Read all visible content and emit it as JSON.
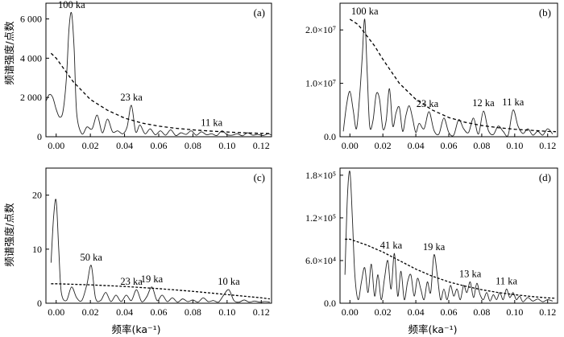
{
  "figure": {
    "ylabel": "频谱强度/点数",
    "xlabel": "频率(ka⁻¹)"
  },
  "chart_data": [
    {
      "type": "line",
      "panel": "(a)",
      "title": "",
      "xlim": [
        -0.006,
        0.126
      ],
      "ylim": [
        0,
        6800
      ],
      "xticks": [
        0.0,
        0.02,
        0.04,
        0.06,
        0.08,
        0.1,
        0.12
      ],
      "xtick_labels": [
        "0.00",
        "0.02",
        "0.04",
        "0.06",
        "0.08",
        "0.10",
        "0.12"
      ],
      "yticks": [
        0,
        2000,
        4000,
        6000
      ],
      "ytick_labels": [
        "0",
        "2 000",
        "4 000",
        "6 000"
      ],
      "show_ylabel": true,
      "show_xlabel": false,
      "series": [
        {
          "style": "solid",
          "x": [
            -0.006,
            -0.004,
            -0.002,
            0.0,
            0.002,
            0.004,
            0.006,
            0.0075,
            0.009,
            0.0105,
            0.012,
            0.015,
            0.018,
            0.021,
            0.024,
            0.027,
            0.03,
            0.033,
            0.036,
            0.039,
            0.0415,
            0.044,
            0.0465,
            0.049,
            0.052,
            0.055,
            0.058,
            0.061,
            0.064,
            0.067,
            0.07,
            0.073,
            0.076,
            0.079,
            0.082,
            0.085,
            0.088,
            0.091,
            0.094,
            0.097,
            0.1,
            0.103,
            0.106,
            0.109,
            0.112,
            0.115,
            0.118,
            0.121,
            0.124,
            0.126
          ],
          "y": [
            1800,
            2150,
            2000,
            1400,
            1000,
            1300,
            3000,
            5500,
            6300,
            4500,
            1200,
            150,
            500,
            400,
            1100,
            200,
            900,
            250,
            300,
            150,
            500,
            1600,
            250,
            600,
            150,
            400,
            100,
            300,
            80,
            350,
            60,
            200,
            120,
            300,
            80,
            250,
            100,
            150,
            60,
            300,
            100,
            80,
            150,
            50,
            200,
            80,
            120,
            60,
            150,
            80
          ]
        },
        {
          "style": "dashed",
          "x": [
            -0.003,
            0.0,
            0.01,
            0.02,
            0.03,
            0.04,
            0.05,
            0.06,
            0.07,
            0.08,
            0.09,
            0.1,
            0.11,
            0.12,
            0.126
          ],
          "y": [
            4250,
            4000,
            2800,
            1900,
            1350,
            950,
            700,
            540,
            430,
            350,
            290,
            240,
            200,
            170,
            160
          ]
        }
      ],
      "annotations": [
        {
          "text": "100 ka",
          "x": 0.009,
          "y": 6300
        },
        {
          "text": "23 ka",
          "x": 0.044,
          "y": 1600
        },
        {
          "text": "11 ka",
          "x": 0.091,
          "y": 300
        }
      ]
    },
    {
      "type": "line",
      "panel": "(b)",
      "title": "",
      "xlim": [
        -0.006,
        0.126
      ],
      "ylim": [
        0,
        25000000
      ],
      "xticks": [
        0.0,
        0.02,
        0.04,
        0.06,
        0.08,
        0.1,
        0.12
      ],
      "xtick_labels": [
        "0.00",
        "0.02",
        "0.04",
        "0.06",
        "0.08",
        "0.10",
        "0.12"
      ],
      "yticks": [
        0,
        10000000,
        20000000
      ],
      "ytick_labels": [
        "0.0",
        "1.0×10⁷",
        "2.0×10⁷"
      ],
      "show_ylabel": false,
      "show_xlabel": false,
      "series": [
        {
          "style": "solid",
          "x": [
            -0.004,
            -0.002,
            0.0,
            0.002,
            0.004,
            0.006,
            0.0075,
            0.009,
            0.0105,
            0.012,
            0.014,
            0.016,
            0.018,
            0.02,
            0.022,
            0.024,
            0.026,
            0.028,
            0.03,
            0.032,
            0.034,
            0.036,
            0.038,
            0.04,
            0.042,
            0.045,
            0.048,
            0.051,
            0.054,
            0.057,
            0.06,
            0.063,
            0.066,
            0.069,
            0.072,
            0.075,
            0.078,
            0.081,
            0.084,
            0.087,
            0.09,
            0.093,
            0.096,
            0.099,
            0.102,
            0.105,
            0.108,
            0.111,
            0.114,
            0.117,
            0.12,
            0.123
          ],
          "y": [
            1000000,
            6000000,
            8500000,
            5000000,
            1500000,
            8000000,
            15000000,
            22000000,
            12000000,
            2000000,
            3000000,
            8000000,
            7000000,
            1500000,
            3000000,
            9000000,
            2000000,
            4500000,
            5500000,
            1000000,
            4000000,
            5800000,
            3500000,
            800000,
            2500000,
            1500000,
            4700000,
            1200000,
            500000,
            3500000,
            800000,
            300000,
            3200000,
            1500000,
            800000,
            3500000,
            500000,
            4800000,
            1200000,
            400000,
            2000000,
            1000000,
            300000,
            5000000,
            2000000,
            600000,
            1500000,
            300000,
            1000000,
            300000,
            1500000,
            500000
          ]
        },
        {
          "style": "dashed",
          "x": [
            0.0,
            0.005,
            0.01,
            0.015,
            0.02,
            0.03,
            0.04,
            0.05,
            0.06,
            0.07,
            0.08,
            0.09,
            0.1,
            0.11,
            0.12,
            0.125
          ],
          "y": [
            22000000,
            21000000,
            19000000,
            17000000,
            14500000,
            10000000,
            7000000,
            5000000,
            3600000,
            2700000,
            2100000,
            1700000,
            1400000,
            1200000,
            1000000,
            950000
          ]
        }
      ],
      "annotations": [
        {
          "text": "100 ka",
          "x": 0.009,
          "y": 22000000
        },
        {
          "text": "23 ka",
          "x": 0.047,
          "y": 4700000
        },
        {
          "text": "12 ka",
          "x": 0.081,
          "y": 4800000
        },
        {
          "text": "11 ka",
          "x": 0.099,
          "y": 5000000
        }
      ]
    },
    {
      "type": "line",
      "panel": "(c)",
      "title": "",
      "xlim": [
        -0.006,
        0.126
      ],
      "ylim": [
        0,
        25
      ],
      "xticks": [
        0.0,
        0.02,
        0.04,
        0.06,
        0.08,
        0.1,
        0.12
      ],
      "xtick_labels": [
        "0.00",
        "0.02",
        "0.04",
        "0.06",
        "0.08",
        "0.10",
        "0.12"
      ],
      "yticks": [
        0,
        10,
        20
      ],
      "ytick_labels": [
        "0",
        "10",
        "20"
      ],
      "show_ylabel": true,
      "show_xlabel": true,
      "series": [
        {
          "style": "solid",
          "x": [
            -0.003,
            -0.0015,
            0.0,
            0.0015,
            0.003,
            0.006,
            0.009,
            0.012,
            0.015,
            0.018,
            0.0205,
            0.023,
            0.026,
            0.029,
            0.032,
            0.035,
            0.038,
            0.041,
            0.044,
            0.047,
            0.05,
            0.053,
            0.056,
            0.059,
            0.062,
            0.065,
            0.068,
            0.071,
            0.074,
            0.077,
            0.08,
            0.083,
            0.086,
            0.089,
            0.092,
            0.095,
            0.098,
            0.101,
            0.104,
            0.107,
            0.11,
            0.113,
            0.116,
            0.119,
            0.122,
            0.125
          ],
          "y": [
            7.5,
            16,
            19,
            10,
            2,
            0.5,
            3,
            1,
            0.5,
            3.5,
            7,
            1,
            0.5,
            2,
            0.3,
            1.5,
            0.3,
            1.5,
            0.5,
            2.5,
            0.3,
            1.2,
            3,
            0.5,
            1.5,
            0.3,
            1,
            0.2,
            0.8,
            0.3,
            0.6,
            0.2,
            1,
            0.3,
            0.5,
            0.2,
            1.5,
            2.5,
            0.5,
            0.2,
            0.6,
            0.2,
            0.4,
            0.2,
            0.3,
            0.2
          ]
        },
        {
          "style": "dashed",
          "x": [
            -0.003,
            0.0,
            0.02,
            0.04,
            0.06,
            0.08,
            0.1,
            0.12,
            0.125
          ],
          "y": [
            3.6,
            3.6,
            3.4,
            3.1,
            2.7,
            2.2,
            1.6,
            1.0,
            0.8
          ]
        }
      ],
      "annotations": [
        {
          "text": "50 ka",
          "x": 0.0205,
          "y": 7
        },
        {
          "text": "23 ka",
          "x": 0.044,
          "y": 2.5
        },
        {
          "text": "19 ka",
          "x": 0.056,
          "y": 3
        },
        {
          "text": "10 ka",
          "x": 0.101,
          "y": 2.5
        }
      ]
    },
    {
      "type": "line",
      "panel": "(d)",
      "title": "",
      "xlim": [
        -0.006,
        0.126
      ],
      "ylim": [
        0,
        190000
      ],
      "xticks": [
        0.0,
        0.02,
        0.04,
        0.06,
        0.08,
        0.1,
        0.12
      ],
      "xtick_labels": [
        "0.00",
        "0.02",
        "0.04",
        "0.06",
        "0.08",
        "0.10",
        "0.12"
      ],
      "yticks": [
        0,
        60000,
        120000,
        180000
      ],
      "ytick_labels": [
        "0.0",
        "6.0×10⁴",
        "1.2×10⁵",
        "1.8×10⁵"
      ],
      "show_ylabel": false,
      "show_xlabel": true,
      "series": [
        {
          "style": "solid",
          "x": [
            -0.003,
            -0.0015,
            0.0,
            0.0015,
            0.003,
            0.005,
            0.007,
            0.009,
            0.011,
            0.013,
            0.015,
            0.017,
            0.019,
            0.021,
            0.023,
            0.025,
            0.027,
            0.029,
            0.031,
            0.033,
            0.035,
            0.037,
            0.039,
            0.041,
            0.043,
            0.045,
            0.047,
            0.049,
            0.051,
            0.053,
            0.055,
            0.057,
            0.059,
            0.061,
            0.063,
            0.065,
            0.067,
            0.069,
            0.071,
            0.073,
            0.075,
            0.077,
            0.079,
            0.081,
            0.083,
            0.085,
            0.087,
            0.089,
            0.091,
            0.093,
            0.095,
            0.097,
            0.099,
            0.101,
            0.103,
            0.105,
            0.108,
            0.111,
            0.114,
            0.117,
            0.12,
            0.123
          ],
          "y": [
            40000,
            150000,
            185000,
            120000,
            40000,
            5000,
            30000,
            50000,
            15000,
            55000,
            10000,
            40000,
            5000,
            35000,
            60000,
            20000,
            70000,
            10000,
            45000,
            5000,
            30000,
            40000,
            10000,
            35000,
            20000,
            5000,
            30000,
            15000,
            68000,
            40000,
            5000,
            20000,
            5000,
            25000,
            10000,
            20000,
            5000,
            25000,
            15000,
            30000,
            8000,
            28000,
            12000,
            5000,
            15000,
            3000,
            12000,
            5000,
            15000,
            5000,
            20000,
            8000,
            15000,
            5000,
            10000,
            2000,
            8000,
            3000,
            6000,
            2000,
            5000,
            3000
          ]
        },
        {
          "style": "dashed",
          "x": [
            -0.003,
            0.0,
            0.01,
            0.02,
            0.03,
            0.04,
            0.05,
            0.06,
            0.07,
            0.08,
            0.09,
            0.1,
            0.11,
            0.12,
            0.125
          ],
          "y": [
            90000,
            90000,
            82000,
            72000,
            60000,
            48000,
            38000,
            30000,
            24000,
            19000,
            15000,
            12000,
            9500,
            7500,
            7000
          ]
        }
      ],
      "annotations": [
        {
          "text": "41 ka",
          "x": 0.025,
          "y": 70000
        },
        {
          "text": "19 ka",
          "x": 0.051,
          "y": 68000
        },
        {
          "text": "13 ka",
          "x": 0.073,
          "y": 30000
        },
        {
          "text": "11 ka",
          "x": 0.095,
          "y": 20000
        }
      ]
    }
  ]
}
